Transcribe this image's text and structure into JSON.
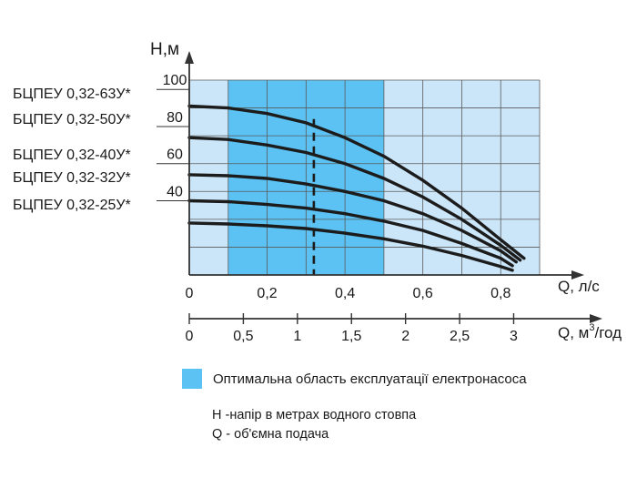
{
  "chart_data": {
    "type": "line",
    "y_axis_title": "Н,м",
    "x_axis_title": "Q, л/с",
    "x2_axis_title": "Q, м³/год",
    "x2_axis_title_main": "Q, м",
    "x2_axis_title_sup": "3",
    "x2_axis_title_tail": "/год",
    "xlim": [
      0,
      0.9
    ],
    "ylim": [
      0,
      105
    ],
    "y_ticks": [
      "100",
      "80",
      "60",
      "40"
    ],
    "y_tick_values": [
      100,
      80,
      60,
      40
    ],
    "x_ticks": [
      "0",
      "0,2",
      "0,4",
      "0,6",
      "0,8"
    ],
    "x_tick_values": [
      0,
      0.2,
      0.4,
      0.6,
      0.8
    ],
    "x2_ticks": [
      "0",
      "0,5",
      "1",
      "1,5",
      "2",
      "2,5",
      "3"
    ],
    "x2_tick_values": [
      0,
      0.5,
      1,
      1.5,
      2,
      2.5,
      3
    ],
    "grid": true,
    "optimal_region": {
      "x_start": 0.1,
      "x_end": 0.5
    },
    "dashed_marker_x": 0.32,
    "series": [
      {
        "name": "БЦПЕУ 0,32-63У*",
        "points": [
          [
            0.0,
            91
          ],
          [
            0.1,
            90
          ],
          [
            0.2,
            87
          ],
          [
            0.3,
            82
          ],
          [
            0.4,
            74
          ],
          [
            0.5,
            64
          ],
          [
            0.6,
            51
          ],
          [
            0.7,
            36
          ],
          [
            0.8,
            19
          ],
          [
            0.86,
            9
          ]
        ]
      },
      {
        "name": "БЦПЕУ 0,32-50У*",
        "points": [
          [
            0.0,
            74
          ],
          [
            0.1,
            73
          ],
          [
            0.2,
            70
          ],
          [
            0.3,
            66
          ],
          [
            0.4,
            60
          ],
          [
            0.5,
            52
          ],
          [
            0.6,
            42
          ],
          [
            0.7,
            30
          ],
          [
            0.8,
            16
          ],
          [
            0.85,
            8
          ]
        ]
      },
      {
        "name": "БЦПЕУ 0,32-40У*",
        "points": [
          [
            0.0,
            54
          ],
          [
            0.1,
            53.5
          ],
          [
            0.2,
            52
          ],
          [
            0.3,
            49
          ],
          [
            0.4,
            45
          ],
          [
            0.5,
            40
          ],
          [
            0.6,
            33
          ],
          [
            0.7,
            24
          ],
          [
            0.8,
            13
          ],
          [
            0.84,
            7
          ]
        ]
      },
      {
        "name": "БЦПЕУ 0,32-32У*",
        "points": [
          [
            0.0,
            40
          ],
          [
            0.1,
            39.5
          ],
          [
            0.2,
            38
          ],
          [
            0.3,
            36
          ],
          [
            0.4,
            33
          ],
          [
            0.5,
            29
          ],
          [
            0.6,
            24
          ],
          [
            0.7,
            17
          ],
          [
            0.8,
            9
          ],
          [
            0.83,
            5
          ]
        ]
      },
      {
        "name": "БЦПЕУ 0,32-25У*",
        "points": [
          [
            0.0,
            28
          ],
          [
            0.1,
            27.5
          ],
          [
            0.2,
            26.5
          ],
          [
            0.3,
            25
          ],
          [
            0.4,
            22.5
          ],
          [
            0.5,
            19.5
          ],
          [
            0.6,
            15.5
          ],
          [
            0.7,
            10.5
          ],
          [
            0.8,
            4.5
          ],
          [
            0.83,
            2.5
          ]
        ]
      }
    ],
    "colors": {
      "plot_bg": "#cce6f9",
      "optimal": "#5bc2f3",
      "grid": "#5a5a5a",
      "curve": "#1c1c1c",
      "axis": "#333333"
    }
  },
  "legend": {
    "optimal_label": "Оптимальна область експлуатації електронасоса",
    "note_h": "Н -напір в метрах водного стовпа",
    "note_q": "Q - об'ємна подача"
  }
}
